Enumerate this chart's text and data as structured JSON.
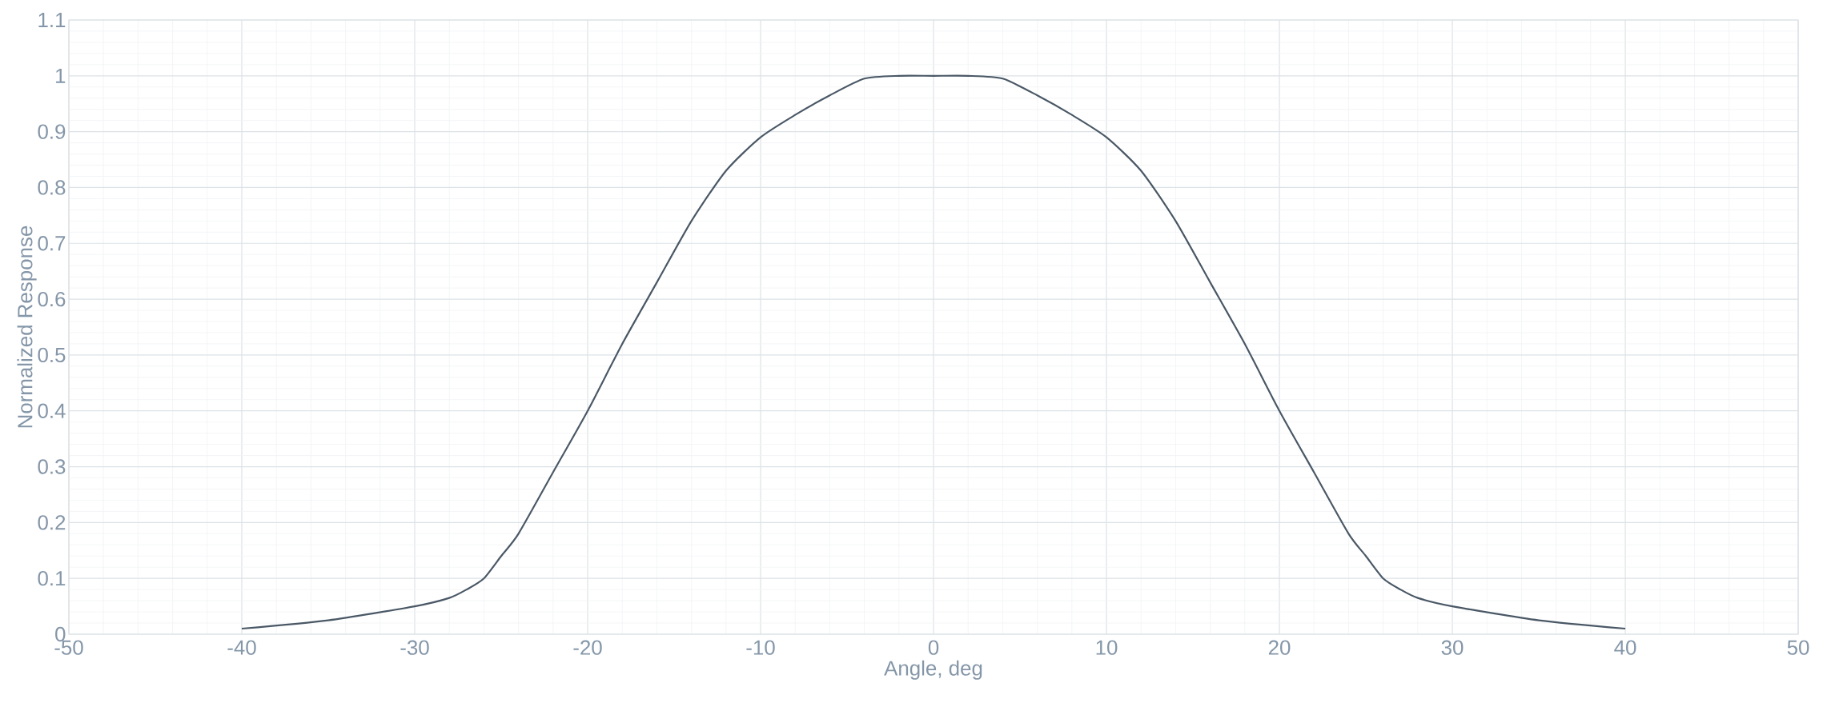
{
  "chart_data": {
    "type": "line",
    "xlabel": "Angle, deg",
    "ylabel": "Normalized Response",
    "x": [
      -40,
      -35,
      -30,
      -28,
      -27,
      -26,
      -25,
      -24,
      -22,
      -20,
      -18,
      -16,
      -14,
      -12,
      -10,
      -8,
      -6,
      -4,
      -2,
      0,
      2,
      4,
      6,
      8,
      10,
      12,
      14,
      16,
      18,
      20,
      22,
      24,
      25,
      26,
      27,
      28,
      30,
      35,
      40
    ],
    "series": [
      {
        "color": "#4a5866",
        "values": [
          0.01,
          0.025,
          0.05,
          0.065,
          0.08,
          0.1,
          0.14,
          0.18,
          0.29,
          0.4,
          0.52,
          0.63,
          0.74,
          0.83,
          0.89,
          0.93,
          0.965,
          0.995,
          1.0,
          1.0,
          1.0,
          0.995,
          0.965,
          0.93,
          0.89,
          0.83,
          0.74,
          0.63,
          0.52,
          0.4,
          0.29,
          0.18,
          0.14,
          0.1,
          0.08,
          0.065,
          0.05,
          0.025,
          0.01
        ]
      }
    ],
    "xlim": [
      -50,
      50
    ],
    "ylim": [
      0,
      1.1
    ],
    "xticks": [
      -50,
      -40,
      -30,
      -20,
      -10,
      0,
      10,
      20,
      30,
      40,
      50
    ],
    "yticks": [
      0,
      0.1,
      0.2,
      0.3,
      0.4,
      0.5,
      0.6,
      0.7,
      0.8,
      0.9,
      1,
      1.1
    ],
    "grid": true,
    "line_style": "solid",
    "marker": "none"
  }
}
